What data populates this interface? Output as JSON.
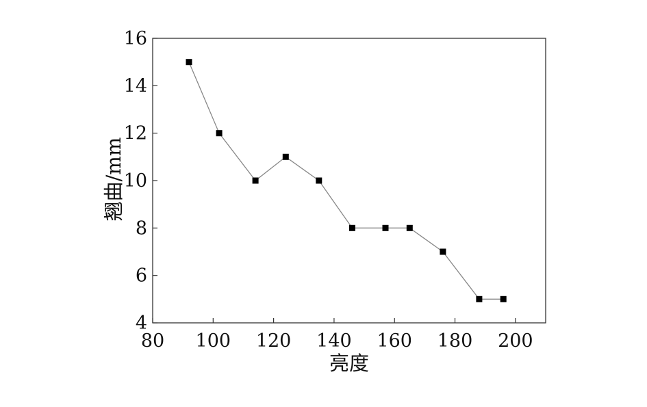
{
  "chart_data": {
    "type": "line",
    "title": "",
    "xlabel": "亮度",
    "ylabel": "翘曲/mm",
    "xlim": [
      80,
      210
    ],
    "ylim": [
      4,
      16
    ],
    "xticks": [
      80,
      100,
      120,
      140,
      160,
      180,
      200
    ],
    "yticks": [
      4,
      6,
      8,
      10,
      12,
      14,
      16
    ],
    "grid": false,
    "legend": "none",
    "colors": {
      "line": "#888888",
      "marker": "#000000",
      "frame": "#333333"
    },
    "series": [
      {
        "marker": "square",
        "x": [
          92,
          102,
          114,
          124,
          135,
          146,
          157,
          165,
          176,
          188,
          196
        ],
        "y": [
          15,
          12,
          10,
          11,
          10,
          8,
          8,
          8,
          7,
          5,
          5
        ]
      }
    ]
  }
}
